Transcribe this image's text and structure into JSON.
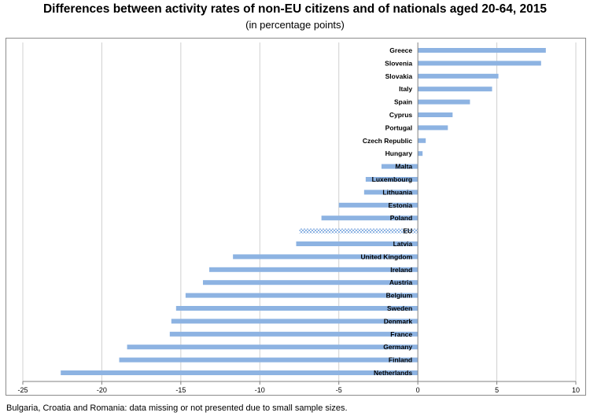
{
  "title": "Differences between activity rates of non-EU citizens and of nationals aged 20-64, 2015",
  "subtitle": "(in percentage points)",
  "footnote": "Bulgaria, Croatia and Romania: data missing or not presented due to small sample sizes.",
  "colors": {
    "bar": "#8db3e2",
    "eu_bar_pattern": "#8db3e2",
    "grid": "#d0d0d0",
    "axis": "#808080"
  },
  "chart_data": {
    "type": "bar",
    "orientation": "horizontal",
    "title": "Differences between activity rates of non-EU citizens and of nationals aged 20-64, 2015",
    "subtitle": "(in percentage points)",
    "xlabel": "",
    "ylabel": "",
    "xlim": [
      -25,
      10
    ],
    "xticks": [
      -25,
      -20,
      -15,
      -10,
      -5,
      0,
      5,
      10
    ],
    "grid": true,
    "legend": "none",
    "categories": [
      "Greece",
      "Slovenia",
      "Slovakia",
      "Italy",
      "Spain",
      "Cyprus",
      "Portugal",
      "Czech Republic",
      "Hungary",
      "Malta",
      "Luxembourg",
      "Lithuania",
      "Estonia",
      "Poland",
      "EU",
      "Latvia",
      "United Kingdom",
      "Ireland",
      "Austria",
      "Belgium",
      "Sweden",
      "Denmark",
      "France",
      "Germany",
      "Finland",
      "Netherlands"
    ],
    "values": [
      8.1,
      7.8,
      5.1,
      4.7,
      3.3,
      2.2,
      1.9,
      0.5,
      0.3,
      -2.3,
      -3.3,
      -3.4,
      -5.0,
      -6.1,
      -7.5,
      -7.7,
      -11.7,
      -13.2,
      -13.6,
      -14.7,
      -15.3,
      -15.6,
      -15.7,
      -18.4,
      -18.9,
      -22.6
    ],
    "highlight": "EU"
  }
}
